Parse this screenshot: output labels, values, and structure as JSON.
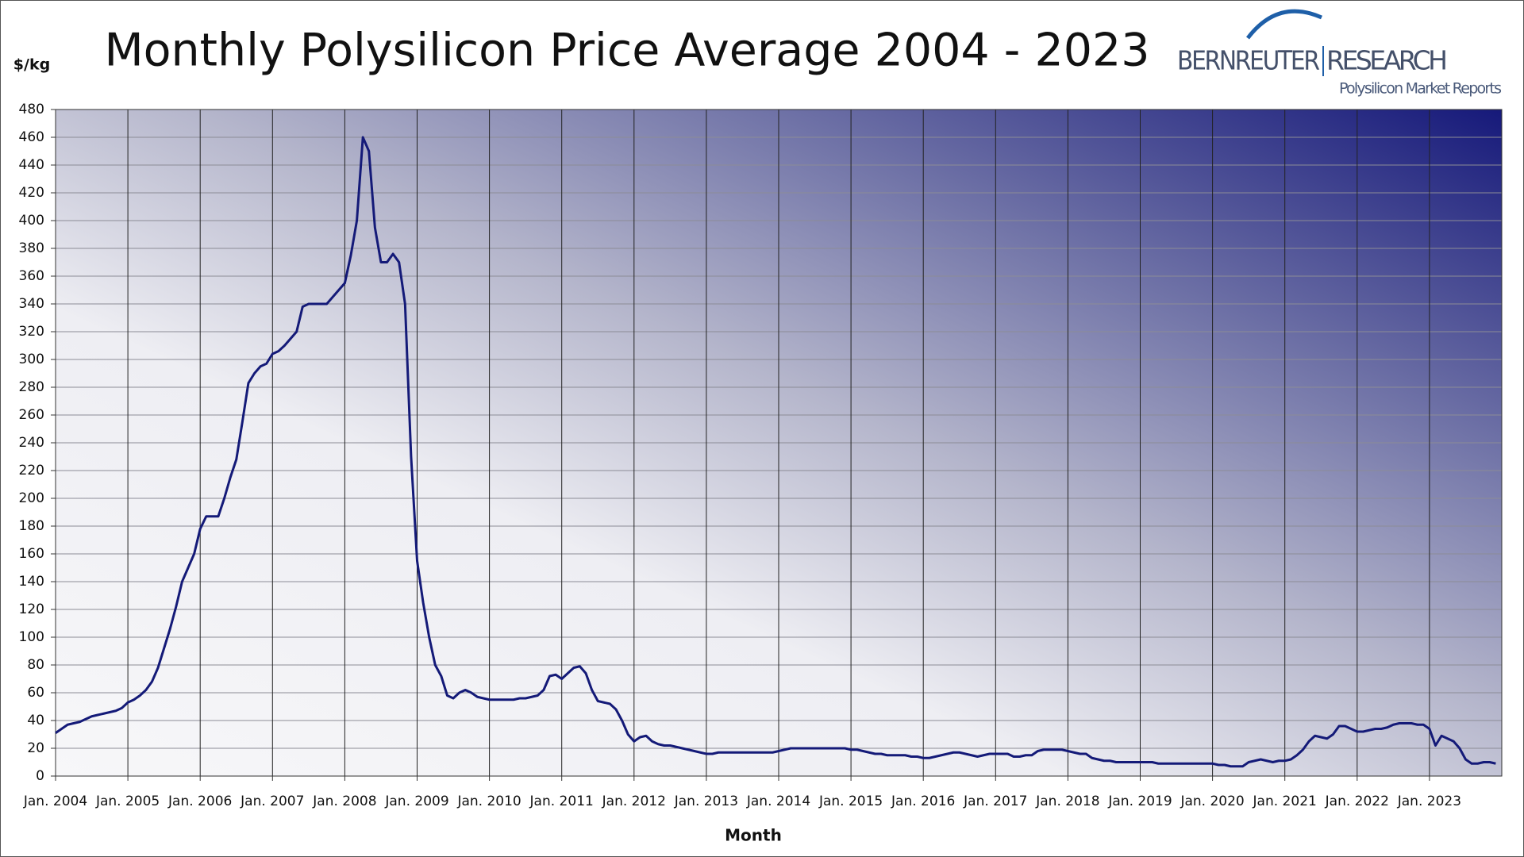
{
  "chart_data": {
    "type": "line",
    "title": "Monthly Polysilicon Price Average 2004 - 2023",
    "y_label": "$/kg",
    "x_label": "Month",
    "logo": {
      "name1": "BERNREUTER",
      "name2": "RESEARCH",
      "tagline": "Polysilicon Market Reports"
    },
    "color": "#141a78",
    "grid": true,
    "xlim": [
      "2004-01",
      "2024-01"
    ],
    "ylim": [
      0,
      480
    ],
    "yticks": [
      0,
      20,
      40,
      60,
      80,
      100,
      120,
      140,
      160,
      180,
      200,
      220,
      240,
      260,
      280,
      300,
      320,
      340,
      360,
      380,
      400,
      420,
      440,
      460,
      480
    ],
    "xticks": [
      {
        "value": "2004-01",
        "label": "Jan. 2004"
      },
      {
        "value": "2005-01",
        "label": "Jan. 2005"
      },
      {
        "value": "2006-01",
        "label": "Jan. 2006"
      },
      {
        "value": "2007-01",
        "label": "Jan. 2007"
      },
      {
        "value": "2008-01",
        "label": "Jan. 2008"
      },
      {
        "value": "2009-01",
        "label": "Jan. 2009"
      },
      {
        "value": "2010-01",
        "label": "Jan. 2010"
      },
      {
        "value": "2011-01",
        "label": "Jan. 2011"
      },
      {
        "value": "2012-01",
        "label": "Jan. 2012"
      },
      {
        "value": "2013-01",
        "label": "Jan. 2013"
      },
      {
        "value": "2014-01",
        "label": "Jan. 2014"
      },
      {
        "value": "2015-01",
        "label": "Jan. 2015"
      },
      {
        "value": "2016-01",
        "label": "Jan. 2016"
      },
      {
        "value": "2017-01",
        "label": "Jan. 2017"
      },
      {
        "value": "2018-01",
        "label": "Jan. 2018"
      },
      {
        "value": "2019-01",
        "label": "Jan. 2019"
      },
      {
        "value": "2020-01",
        "label": "Jan. 2020"
      },
      {
        "value": "2021-01",
        "label": "Jan. 2021"
      },
      {
        "value": "2022-01",
        "label": "Jan. 2022"
      },
      {
        "value": "2023-01",
        "label": "Jan. 2023"
      }
    ],
    "x": [
      "2004-01",
      "2004-02",
      "2004-03",
      "2004-04",
      "2004-05",
      "2004-06",
      "2004-07",
      "2004-08",
      "2004-09",
      "2004-10",
      "2004-11",
      "2004-12",
      "2005-01",
      "2005-02",
      "2005-03",
      "2005-04",
      "2005-05",
      "2005-06",
      "2005-07",
      "2005-08",
      "2005-09",
      "2005-10",
      "2005-11",
      "2005-12",
      "2006-01",
      "2006-02",
      "2006-03",
      "2006-04",
      "2006-05",
      "2006-06",
      "2006-07",
      "2006-08",
      "2006-09",
      "2006-10",
      "2006-11",
      "2006-12",
      "2007-01",
      "2007-02",
      "2007-03",
      "2007-04",
      "2007-05",
      "2007-06",
      "2007-07",
      "2007-08",
      "2007-09",
      "2007-10",
      "2007-11",
      "2007-12",
      "2008-01",
      "2008-02",
      "2008-03",
      "2008-04",
      "2008-05",
      "2008-06",
      "2008-07",
      "2008-08",
      "2008-09",
      "2008-10",
      "2008-11",
      "2008-12",
      "2009-01",
      "2009-02",
      "2009-03",
      "2009-04",
      "2009-05",
      "2009-06",
      "2009-07",
      "2009-08",
      "2009-09",
      "2009-10",
      "2009-11",
      "2009-12",
      "2010-01",
      "2010-02",
      "2010-03",
      "2010-04",
      "2010-05",
      "2010-06",
      "2010-07",
      "2010-08",
      "2010-09",
      "2010-10",
      "2010-11",
      "2010-12",
      "2011-01",
      "2011-02",
      "2011-03",
      "2011-04",
      "2011-05",
      "2011-06",
      "2011-07",
      "2011-08",
      "2011-09",
      "2011-10",
      "2011-11",
      "2011-12",
      "2012-01",
      "2012-02",
      "2012-03",
      "2012-04",
      "2012-05",
      "2012-06",
      "2012-07",
      "2012-08",
      "2012-09",
      "2012-10",
      "2012-11",
      "2012-12",
      "2013-01",
      "2013-02",
      "2013-03",
      "2013-04",
      "2013-05",
      "2013-06",
      "2013-07",
      "2013-08",
      "2013-09",
      "2013-10",
      "2013-11",
      "2013-12",
      "2014-01",
      "2014-02",
      "2014-03",
      "2014-04",
      "2014-05",
      "2014-06",
      "2014-07",
      "2014-08",
      "2014-09",
      "2014-10",
      "2014-11",
      "2014-12",
      "2015-01",
      "2015-02",
      "2015-03",
      "2015-04",
      "2015-05",
      "2015-06",
      "2015-07",
      "2015-08",
      "2015-09",
      "2015-10",
      "2015-11",
      "2015-12",
      "2016-01",
      "2016-02",
      "2016-03",
      "2016-04",
      "2016-05",
      "2016-06",
      "2016-07",
      "2016-08",
      "2016-09",
      "2016-10",
      "2016-11",
      "2016-12",
      "2017-01",
      "2017-02",
      "2017-03",
      "2017-04",
      "2017-05",
      "2017-06",
      "2017-07",
      "2017-08",
      "2017-09",
      "2017-10",
      "2017-11",
      "2017-12",
      "2018-01",
      "2018-02",
      "2018-03",
      "2018-04",
      "2018-05",
      "2018-06",
      "2018-07",
      "2018-08",
      "2018-09",
      "2018-10",
      "2018-11",
      "2018-12",
      "2019-01",
      "2019-02",
      "2019-03",
      "2019-04",
      "2019-05",
      "2019-06",
      "2019-07",
      "2019-08",
      "2019-09",
      "2019-10",
      "2019-11",
      "2019-12",
      "2020-01",
      "2020-02",
      "2020-03",
      "2020-04",
      "2020-05",
      "2020-06",
      "2020-07",
      "2020-08",
      "2020-09",
      "2020-10",
      "2020-11",
      "2020-12",
      "2021-01",
      "2021-02",
      "2021-03",
      "2021-04",
      "2021-05",
      "2021-06",
      "2021-07",
      "2021-08",
      "2021-09",
      "2021-10",
      "2021-11",
      "2021-12",
      "2022-01",
      "2022-02",
      "2022-03",
      "2022-04",
      "2022-05",
      "2022-06",
      "2022-07",
      "2022-08",
      "2022-09",
      "2022-10",
      "2022-11",
      "2022-12",
      "2023-01",
      "2023-02",
      "2023-03",
      "2023-04",
      "2023-05",
      "2023-06",
      "2023-07",
      "2023-08",
      "2023-09",
      "2023-10",
      "2023-11",
      "2023-12"
    ],
    "values": [
      31,
      34,
      37,
      38,
      39,
      41,
      43,
      44,
      45,
      46,
      47,
      49,
      53,
      55,
      58,
      62,
      68,
      78,
      92,
      106,
      122,
      140,
      150,
      160,
      178,
      187,
      187,
      187,
      200,
      215,
      228,
      255,
      283,
      290,
      295,
      297,
      304,
      306,
      310,
      315,
      320,
      338,
      340,
      340,
      340,
      340,
      345,
      350,
      355,
      375,
      400,
      460,
      450,
      395,
      370,
      370,
      376,
      370,
      340,
      230,
      155,
      125,
      100,
      80,
      72,
      58,
      56,
      60,
      62,
      60,
      57,
      56,
      55,
      55,
      55,
      55,
      55,
      56,
      56,
      57,
      58,
      62,
      72,
      73,
      70,
      74,
      78,
      79,
      74,
      62,
      54,
      53,
      52,
      48,
      40,
      30,
      25,
      28,
      29,
      25,
      23,
      22,
      22,
      21,
      20,
      19,
      18,
      17,
      16,
      16,
      17,
      17,
      17,
      17,
      17,
      17,
      17,
      17,
      17,
      17,
      18,
      19,
      20,
      20,
      20,
      20,
      20,
      20,
      20,
      20,
      20,
      20,
      19,
      19,
      18,
      17,
      16,
      16,
      15,
      15,
      15,
      15,
      14,
      14,
      13,
      13,
      14,
      15,
      16,
      17,
      17,
      16,
      15,
      14,
      15,
      16,
      16,
      16,
      16,
      14,
      14,
      15,
      15,
      18,
      19,
      19,
      19,
      19,
      18,
      17,
      16,
      16,
      13,
      12,
      11,
      11,
      10,
      10,
      10,
      10,
      10,
      10,
      10,
      9,
      9,
      9,
      9,
      9,
      9,
      9,
      9,
      9,
      9,
      8,
      8,
      7,
      7,
      7,
      10,
      11,
      12,
      11,
      10,
      11,
      11,
      12,
      15,
      19,
      25,
      29,
      28,
      27,
      30,
      36,
      36,
      34,
      32,
      32,
      33,
      34,
      34,
      35,
      37,
      38,
      38,
      38,
      37,
      37,
      34,
      22,
      29,
      27,
      25,
      20,
      12,
      9,
      9,
      10,
      10,
      9
    ]
  }
}
